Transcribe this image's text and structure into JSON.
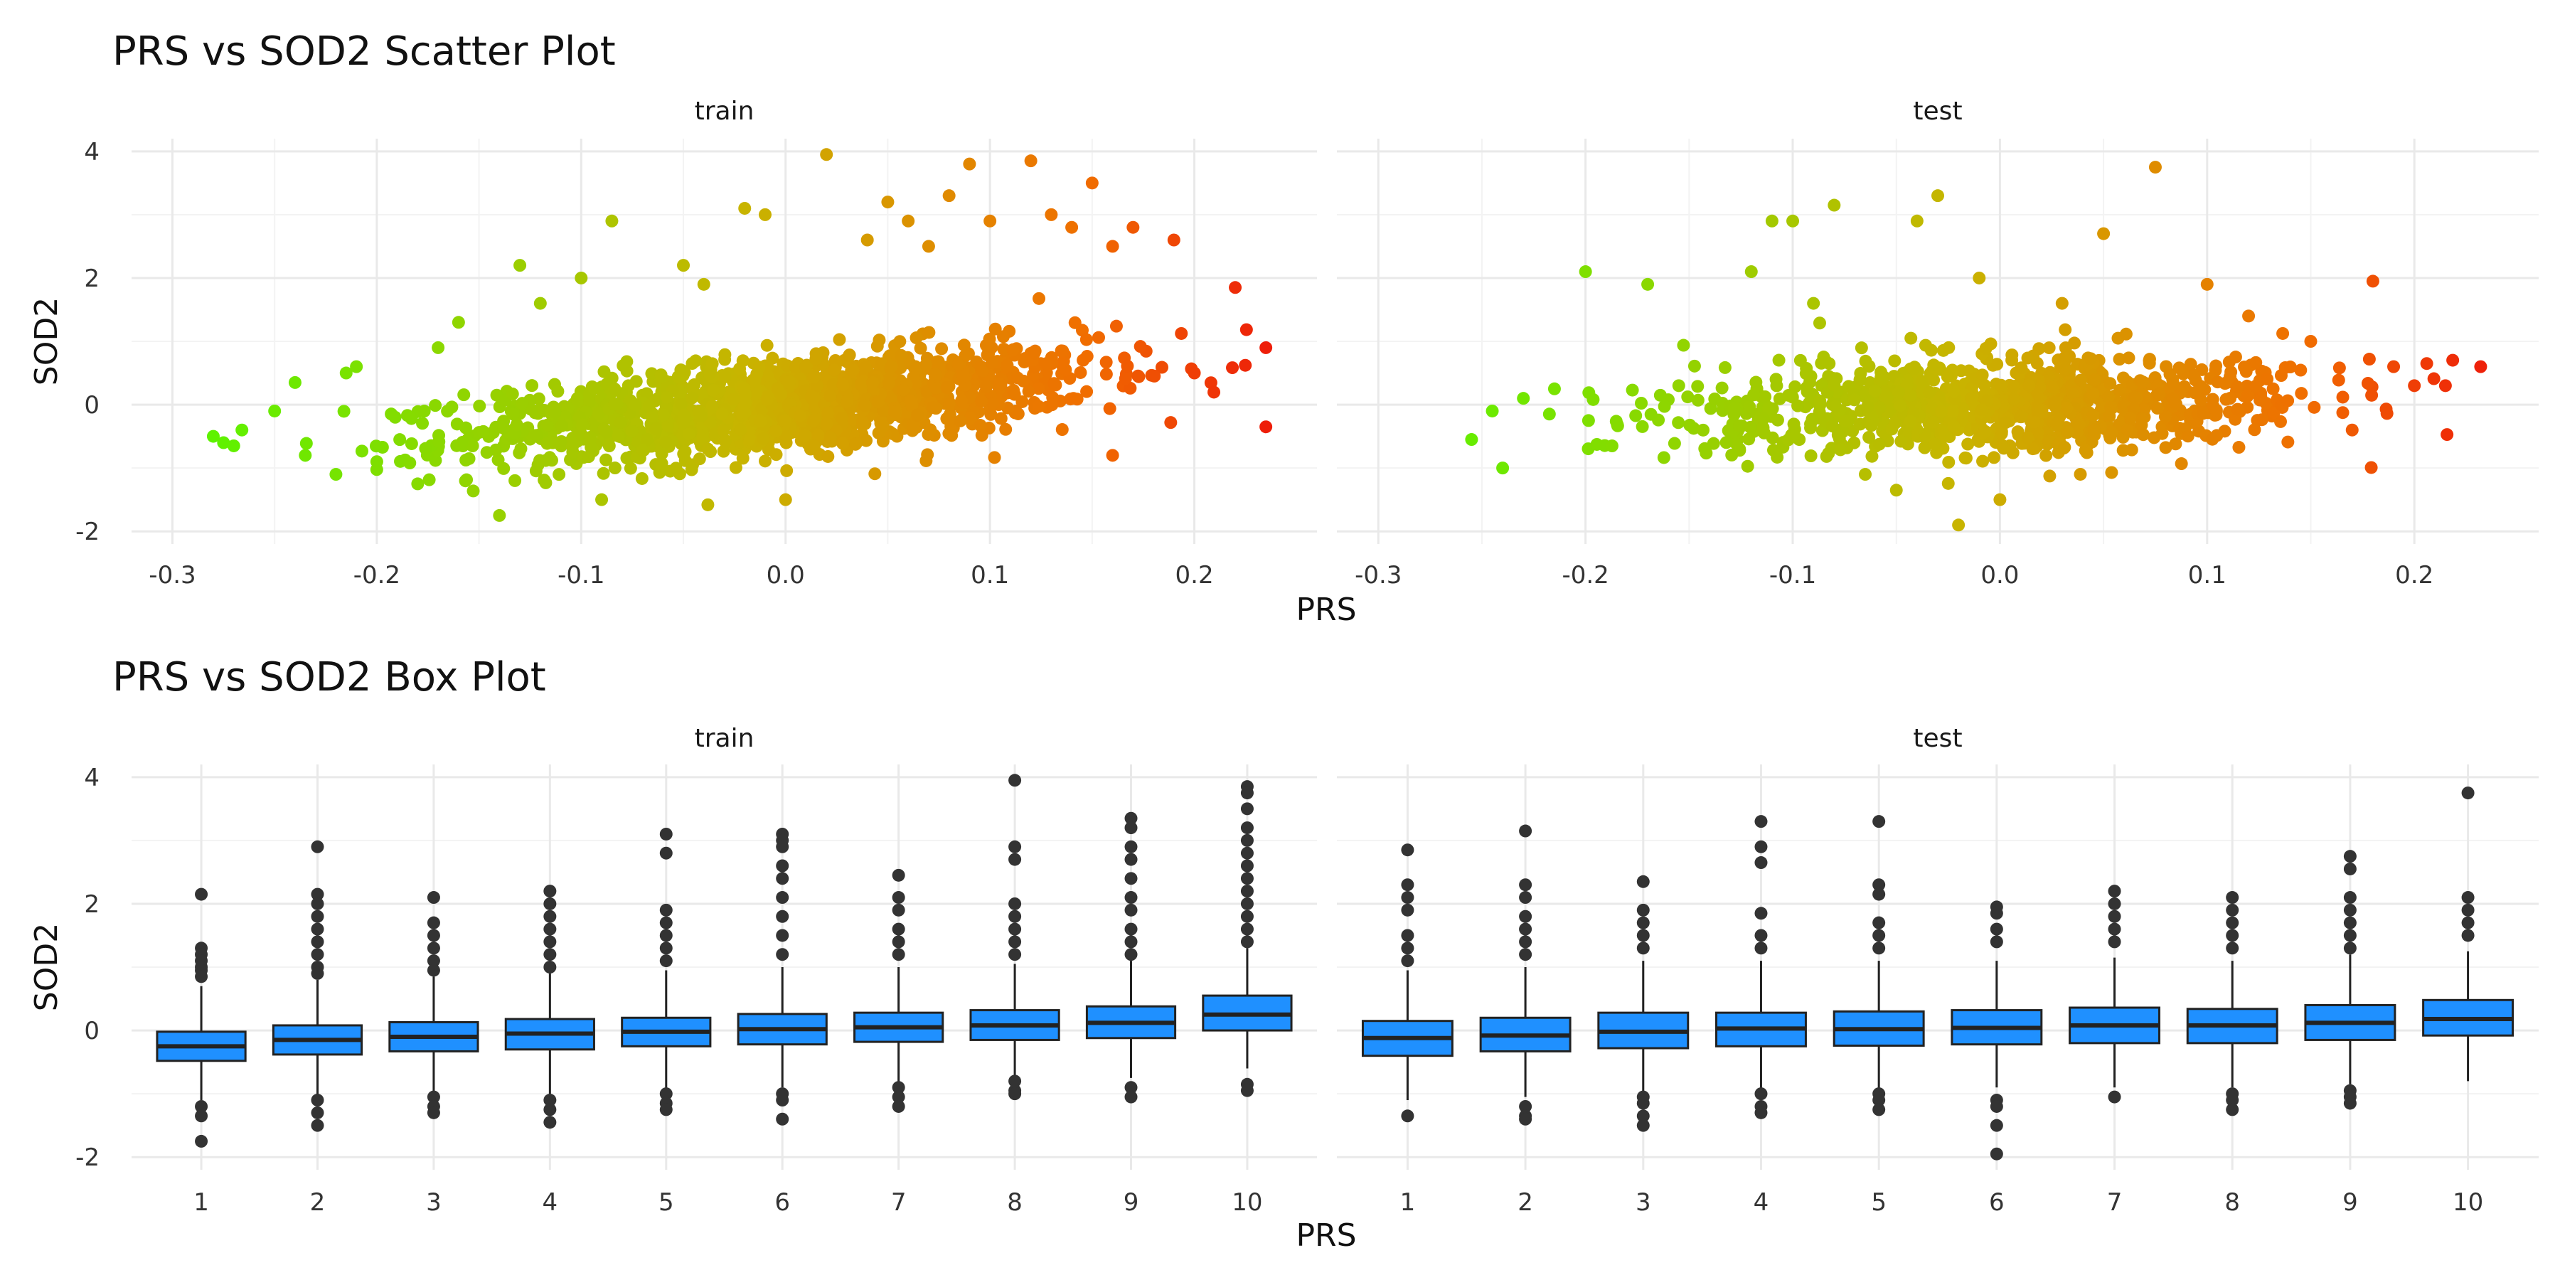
{
  "colors": {
    "panel_grid_major": "#e9e9e9",
    "panel_grid_minor": "#f3f3f3",
    "scatter_low": "#5ef200",
    "scatter_mid": "#c8b400",
    "scatter_high": "#ee1a0a",
    "box_fill": "#1f90ff",
    "box_stroke": "#222222",
    "outlier": "#333333",
    "text": "#333333"
  },
  "chart_data": [
    {
      "type": "scatter",
      "title": "PRS vs SOD2 Scatter Plot",
      "xlabel": "PRS",
      "ylabel": "SOD2",
      "grid": true,
      "facets": [
        "train",
        "test"
      ],
      "xlim": [
        -0.32,
        0.26
      ],
      "ylim": [
        -2.2,
        4.2
      ],
      "xticks": [
        -0.3,
        -0.2,
        -0.1,
        0.0,
        0.1,
        0.2
      ],
      "xtick_labels": [
        "-0.3",
        "-0.2",
        "-0.1",
        "0.0",
        "0.1",
        "0.2"
      ],
      "yticks": [
        -2,
        0,
        2,
        4
      ],
      "ytick_labels": [
        "-2",
        "0",
        "2",
        "4"
      ],
      "color_scale": "gradient by PRS (green low → orange → red high)",
      "trend_slope_train": 3.0,
      "trend_slope_test": 1.0,
      "points": {
        "train": [
          [
            -0.28,
            -0.5
          ],
          [
            -0.275,
            -0.6
          ],
          [
            -0.27,
            -0.65
          ],
          [
            -0.266,
            -0.4
          ],
          [
            -0.25,
            -0.1
          ],
          [
            -0.24,
            0.35
          ],
          [
            -0.235,
            -0.8
          ],
          [
            -0.22,
            -1.1
          ],
          [
            -0.215,
            0.5
          ],
          [
            -0.21,
            0.6
          ],
          [
            -0.2,
            -0.9
          ],
          [
            -0.18,
            -1.25
          ],
          [
            -0.17,
            0.9
          ],
          [
            -0.16,
            1.3
          ],
          [
            -0.14,
            -1.75
          ],
          [
            -0.13,
            2.2
          ],
          [
            -0.12,
            1.6
          ],
          [
            -0.1,
            2.0
          ],
          [
            -0.09,
            -1.5
          ],
          [
            -0.085,
            2.9
          ],
          [
            -0.05,
            2.2
          ],
          [
            -0.04,
            1.9
          ],
          [
            -0.02,
            3.1
          ],
          [
            -0.01,
            3.0
          ],
          [
            0.0,
            -1.5
          ],
          [
            0.02,
            3.95
          ],
          [
            0.04,
            2.6
          ],
          [
            0.05,
            3.2
          ],
          [
            0.06,
            2.9
          ],
          [
            0.07,
            2.5
          ],
          [
            0.08,
            3.3
          ],
          [
            0.09,
            3.8
          ],
          [
            0.1,
            2.9
          ],
          [
            0.12,
            3.85
          ],
          [
            0.13,
            3.0
          ],
          [
            0.14,
            2.8
          ],
          [
            0.15,
            3.5
          ],
          [
            0.16,
            2.5
          ],
          [
            0.17,
            2.8
          ],
          [
            0.19,
            2.6
          ],
          [
            0.16,
            -0.8
          ],
          [
            0.2,
            0.5
          ],
          [
            0.22,
            1.85
          ],
          [
            0.235,
            0.9
          ],
          [
            0.235,
            -0.35
          ]
        ],
        "test": [
          [
            -0.255,
            -0.55
          ],
          [
            -0.245,
            -0.1
          ],
          [
            -0.24,
            -1.0
          ],
          [
            -0.23,
            0.1
          ],
          [
            -0.215,
            0.25
          ],
          [
            -0.2,
            2.1
          ],
          [
            -0.17,
            1.9
          ],
          [
            -0.155,
            0.3
          ],
          [
            -0.12,
            2.1
          ],
          [
            -0.11,
            2.9
          ],
          [
            -0.1,
            2.9
          ],
          [
            -0.09,
            1.6
          ],
          [
            -0.08,
            3.15
          ],
          [
            -0.065,
            -1.1
          ],
          [
            -0.05,
            -1.35
          ],
          [
            -0.04,
            2.9
          ],
          [
            -0.03,
            3.3
          ],
          [
            -0.02,
            -1.9
          ],
          [
            -0.01,
            2.0
          ],
          [
            0.0,
            -1.5
          ],
          [
            0.03,
            1.6
          ],
          [
            0.05,
            2.7
          ],
          [
            0.075,
            3.75
          ],
          [
            0.1,
            1.9
          ],
          [
            0.12,
            1.4
          ],
          [
            0.15,
            1.0
          ],
          [
            0.17,
            -0.4
          ],
          [
            0.18,
            1.95
          ],
          [
            0.19,
            0.6
          ],
          [
            0.2,
            0.3
          ],
          [
            0.215,
            0.3
          ],
          [
            0.232,
            0.6
          ]
        ]
      }
    },
    {
      "type": "box",
      "title": "PRS vs SOD2 Box Plot",
      "xlabel": "PRS",
      "ylabel": "SOD2",
      "grid": true,
      "facets": [
        "train",
        "test"
      ],
      "categories": [
        "1",
        "2",
        "3",
        "4",
        "5",
        "6",
        "7",
        "8",
        "9",
        "10"
      ],
      "ylim": [
        -2.2,
        4.2
      ],
      "yticks": [
        -2,
        0,
        2,
        4
      ],
      "ytick_labels": [
        "-2",
        "0",
        "2",
        "4"
      ],
      "boxes": {
        "train": [
          {
            "q1": -0.48,
            "median": -0.25,
            "q3": -0.02,
            "whisker_low": -1.1,
            "whisker_high": 0.7,
            "outliers": [
              2.15,
              1.3,
              1.2,
              1.1,
              1.0,
              0.95,
              0.85,
              -1.2,
              -1.35,
              -1.75
            ]
          },
          {
            "q1": -0.38,
            "median": -0.15,
            "q3": 0.08,
            "whisker_low": -1.05,
            "whisker_high": 0.8,
            "outliers": [
              2.9,
              2.15,
              2.0,
              1.8,
              1.6,
              1.4,
              1.2,
              1.0,
              0.9,
              -1.1,
              -1.3,
              -1.5
            ]
          },
          {
            "q1": -0.33,
            "median": -0.1,
            "q3": 0.13,
            "whisker_low": -1.0,
            "whisker_high": 0.85,
            "outliers": [
              2.1,
              1.7,
              1.5,
              1.3,
              1.1,
              0.95,
              -1.05,
              -1.2,
              -1.3
            ]
          },
          {
            "q1": -0.3,
            "median": -0.05,
            "q3": 0.18,
            "whisker_low": -1.0,
            "whisker_high": 0.9,
            "outliers": [
              2.2,
              2.0,
              1.8,
              1.6,
              1.4,
              1.2,
              1.0,
              -1.1,
              -1.25,
              -1.45
            ]
          },
          {
            "q1": -0.25,
            "median": -0.02,
            "q3": 0.2,
            "whisker_low": -0.95,
            "whisker_high": 0.95,
            "outliers": [
              3.1,
              2.8,
              1.9,
              1.7,
              1.5,
              1.3,
              1.1,
              -1.0,
              -1.15,
              -1.25
            ]
          },
          {
            "q1": -0.22,
            "median": 0.02,
            "q3": 0.26,
            "whisker_low": -0.9,
            "whisker_high": 1.0,
            "outliers": [
              3.1,
              3.0,
              2.9,
              2.6,
              2.4,
              2.1,
              1.8,
              1.5,
              1.2,
              -1.0,
              -1.1,
              -1.4
            ]
          },
          {
            "q1": -0.18,
            "median": 0.05,
            "q3": 0.28,
            "whisker_low": -0.85,
            "whisker_high": 1.0,
            "outliers": [
              2.45,
              2.1,
              1.9,
              1.6,
              1.4,
              1.2,
              -0.9,
              -1.05,
              -1.2
            ]
          },
          {
            "q1": -0.15,
            "median": 0.08,
            "q3": 0.32,
            "whisker_low": -0.8,
            "whisker_high": 1.05,
            "outliers": [
              3.95,
              2.9,
              2.7,
              2.0,
              1.8,
              1.6,
              1.4,
              1.2,
              -0.8,
              -0.95,
              -1.0
            ]
          },
          {
            "q1": -0.12,
            "median": 0.12,
            "q3": 0.38,
            "whisker_low": -0.75,
            "whisker_high": 1.1,
            "outliers": [
              3.35,
              3.2,
              2.9,
              2.7,
              2.4,
              2.1,
              1.9,
              1.6,
              1.4,
              1.2,
              -0.9,
              -1.05
            ]
          },
          {
            "q1": 0.0,
            "median": 0.25,
            "q3": 0.55,
            "whisker_low": -0.6,
            "whisker_high": 1.3,
            "outliers": [
              3.85,
              3.75,
              3.5,
              3.2,
              3.0,
              2.8,
              2.6,
              2.4,
              2.2,
              2.0,
              1.8,
              1.6,
              1.4,
              -0.85,
              -0.95
            ]
          }
        ],
        "test": [
          {
            "q1": -0.4,
            "median": -0.12,
            "q3": 0.15,
            "whisker_low": -1.1,
            "whisker_high": 0.95,
            "outliers": [
              2.85,
              2.3,
              2.1,
              1.9,
              1.5,
              1.3,
              1.1,
              -1.35
            ]
          },
          {
            "q1": -0.33,
            "median": -0.08,
            "q3": 0.2,
            "whisker_low": -1.05,
            "whisker_high": 1.0,
            "outliers": [
              3.15,
              2.3,
              2.1,
              1.8,
              1.6,
              1.4,
              1.2,
              -1.2,
              -1.35,
              -1.4
            ]
          },
          {
            "q1": -0.28,
            "median": -0.02,
            "q3": 0.28,
            "whisker_low": -1.0,
            "whisker_high": 1.1,
            "outliers": [
              2.35,
              1.9,
              1.7,
              1.5,
              1.3,
              -1.05,
              -1.15,
              -1.35,
              -1.5
            ]
          },
          {
            "q1": -0.25,
            "median": 0.03,
            "q3": 0.28,
            "whisker_low": -0.95,
            "whisker_high": 1.1,
            "outliers": [
              3.3,
              2.9,
              2.65,
              1.85,
              1.5,
              1.3,
              -1.0,
              -1.2,
              -1.3
            ]
          },
          {
            "q1": -0.24,
            "median": 0.02,
            "q3": 0.3,
            "whisker_low": -0.95,
            "whisker_high": 1.1,
            "outliers": [
              3.3,
              2.3,
              2.15,
              1.7,
              1.5,
              1.3,
              -1.0,
              -1.1,
              -1.25
            ]
          },
          {
            "q1": -0.22,
            "median": 0.04,
            "q3": 0.32,
            "whisker_low": -0.9,
            "whisker_high": 1.1,
            "outliers": [
              1.95,
              1.85,
              1.6,
              1.4,
              -1.1,
              -1.2,
              -1.5,
              -1.95
            ]
          },
          {
            "q1": -0.2,
            "median": 0.08,
            "q3": 0.36,
            "whisker_low": -0.9,
            "whisker_high": 1.15,
            "outliers": [
              2.2,
              2.0,
              1.8,
              1.6,
              1.4,
              -1.05
            ]
          },
          {
            "q1": -0.2,
            "median": 0.08,
            "q3": 0.34,
            "whisker_low": -0.9,
            "whisker_high": 1.1,
            "outliers": [
              2.1,
              1.9,
              1.7,
              1.5,
              1.3,
              -1.0,
              -1.1,
              -1.25
            ]
          },
          {
            "q1": -0.15,
            "median": 0.12,
            "q3": 0.4,
            "whisker_low": -0.85,
            "whisker_high": 1.2,
            "outliers": [
              2.75,
              2.55,
              2.1,
              1.9,
              1.7,
              1.5,
              1.3,
              -0.95,
              -1.05,
              -1.15
            ]
          },
          {
            "q1": -0.08,
            "median": 0.18,
            "q3": 0.48,
            "whisker_low": -0.8,
            "whisker_high": 1.25,
            "outliers": [
              3.75,
              2.1,
              1.9,
              1.7,
              1.5
            ]
          }
        ]
      }
    }
  ]
}
